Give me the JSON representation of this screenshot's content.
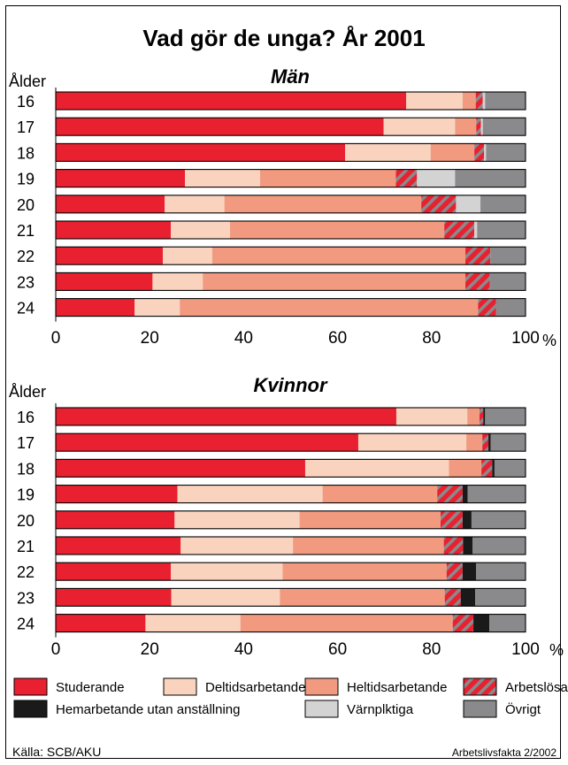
{
  "title": "Vad gör de unga? År 2001",
  "source": "Källa: SCB/AKU",
  "publication": "Arbetslivsfakta 2/2002",
  "legend": [
    {
      "name": "Studerande",
      "color": "#e8202f",
      "pattern": false
    },
    {
      "name": "Deltidsarbetande",
      "color": "#fad3bf",
      "pattern": false
    },
    {
      "name": "Heltidsarbetande",
      "color": "#f29a7f",
      "pattern": false
    },
    {
      "name": "Arbetslösa",
      "color": "#e8202f",
      "pattern": true
    },
    {
      "name": "Hemarbetande utan anställning",
      "color": "#1a1a1a",
      "pattern": false
    },
    {
      "name": "Värnplktiga",
      "color": "#d3d3d3",
      "pattern": false
    },
    {
      "name": "Övrigt",
      "color": "#8a8a8c",
      "pattern": false
    }
  ],
  "chart_data": [
    {
      "type": "bar",
      "stacked": true,
      "orientation": "horizontal",
      "title": "Män",
      "ylabel": "Ålder",
      "xlabel": "%",
      "xlim": [
        0,
        100
      ],
      "xticks": [
        0,
        20,
        40,
        60,
        80,
        100
      ],
      "categories": [
        "16",
        "17",
        "18",
        "19",
        "20",
        "21",
        "22",
        "23",
        "24"
      ],
      "series": [
        {
          "name": "Studerande",
          "values": [
            74.6,
            69.8,
            61.6,
            27.5,
            23.2,
            24.5,
            22.8,
            20.6,
            16.8
          ]
        },
        {
          "name": "Deltidsarbetande",
          "values": [
            12.0,
            15.2,
            18.2,
            16.0,
            12.7,
            12.6,
            10.5,
            10.7,
            9.6
          ]
        },
        {
          "name": "Heltidsarbetande",
          "values": [
            2.8,
            4.5,
            9.3,
            28.9,
            41.9,
            45.6,
            53.9,
            55.9,
            63.5
          ]
        },
        {
          "name": "Arbetslösa",
          "values": [
            1.5,
            1.0,
            2.1,
            4.5,
            7.4,
            6.4,
            5.3,
            5.2,
            3.8
          ]
        },
        {
          "name": "Hemarbetande utan anställning",
          "values": [
            0,
            0,
            0,
            0,
            0,
            0,
            0,
            0,
            0
          ]
        },
        {
          "name": "Värnplktiga",
          "values": [
            0.5,
            0.4,
            0.4,
            8.1,
            5.2,
            0.6,
            0,
            0,
            0
          ]
        },
        {
          "name": "Övrigt",
          "values": [
            8.6,
            9.1,
            8.4,
            15.0,
            9.6,
            10.3,
            7.5,
            7.6,
            6.3
          ]
        }
      ]
    },
    {
      "type": "bar",
      "stacked": true,
      "orientation": "horizontal",
      "title": "Kvinnor",
      "ylabel": "Ålder",
      "xlabel": "%",
      "xlim": [
        0,
        100
      ],
      "xticks": [
        0,
        20,
        40,
        60,
        80,
        100
      ],
      "categories": [
        "16",
        "17",
        "18",
        "19",
        "20",
        "21",
        "22",
        "23",
        "24"
      ],
      "series": [
        {
          "name": "Studerande",
          "values": [
            72.5,
            64.4,
            53.1,
            25.9,
            25.3,
            26.6,
            24.5,
            24.6,
            19.1
          ]
        },
        {
          "name": "Deltidsarbetande",
          "values": [
            15.1,
            23.0,
            30.6,
            30.9,
            26.6,
            23.9,
            23.8,
            23.1,
            20.2
          ]
        },
        {
          "name": "Heltidsarbetande",
          "values": [
            2.6,
            3.4,
            6.9,
            24.4,
            30.0,
            32.1,
            34.9,
            35.1,
            45.2
          ]
        },
        {
          "name": "Arbetslösa",
          "values": [
            0.8,
            1.3,
            2.3,
            5.4,
            4.7,
            4.1,
            3.4,
            3.4,
            4.4
          ]
        },
        {
          "name": "Hemarbetande utan anställning",
          "values": [
            0.4,
            0.5,
            0.5,
            1.1,
            1.9,
            2.0,
            2.9,
            3.1,
            3.4
          ]
        },
        {
          "name": "Värnplktiga",
          "values": [
            0,
            0,
            0,
            0,
            0,
            0,
            0,
            0,
            0
          ]
        },
        {
          "name": "Övrigt",
          "values": [
            8.6,
            7.4,
            6.6,
            12.3,
            11.5,
            11.3,
            10.5,
            10.7,
            7.7
          ]
        }
      ]
    }
  ]
}
